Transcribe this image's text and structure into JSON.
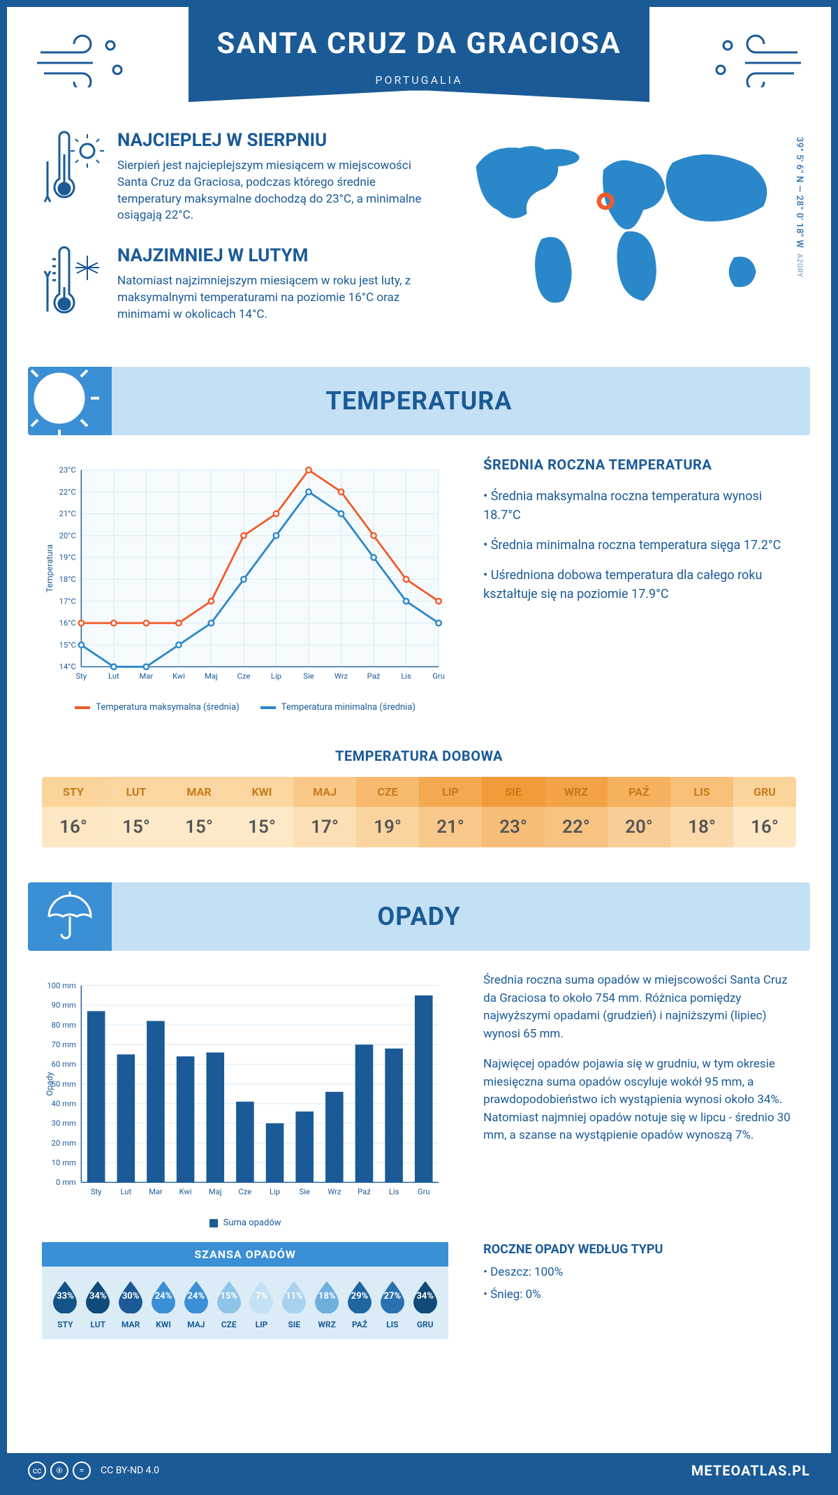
{
  "header": {
    "title": "SANTA CRUZ DA GRACIOSA",
    "subtitle": "PORTUGALIA"
  },
  "coords": {
    "main": "39° 5' 6'' N — 28° 0' 18'' W",
    "sub": "AZORY"
  },
  "intro": {
    "hot": {
      "heading": "NAJCIEPLEJ W SIERPNIU",
      "text": "Sierpień jest najcieplejszym miesiącem w miejscowości Santa Cruz da Graciosa, podczas którego średnie temperatury maksymalne dochodzą do 23°C, a minimalne osiągają 22°C."
    },
    "cold": {
      "heading": "NAJZIMNIEJ W LUTYM",
      "text": "Natomiast najzimniejszym miesiącem w roku jest luty, z maksymalnymi temperaturami na poziomie 16°C oraz minimami w okolicach 14°C."
    }
  },
  "tempSection": {
    "bannerLabel": "TEMPERATURA",
    "chart": {
      "type": "line",
      "months": [
        "Sty",
        "Lut",
        "Mar",
        "Kwi",
        "Maj",
        "Cze",
        "Lip",
        "Sie",
        "Wrz",
        "Paź",
        "Lis",
        "Gru"
      ],
      "max": [
        16,
        16,
        16,
        16,
        17,
        20,
        21,
        23,
        22,
        20,
        18,
        17
      ],
      "min": [
        15,
        14,
        14,
        15,
        16,
        18,
        20,
        22,
        21,
        19,
        17,
        16
      ],
      "colors": {
        "max": "#f15a29",
        "min": "#2a87c9",
        "grid": "#d8e8f4",
        "axis": "#1a5a96",
        "bg": "#f5fafd"
      },
      "ylim": [
        14,
        23
      ],
      "ytick": 1,
      "yTitle": "Temperatura",
      "legend": {
        "max": "Temperatura maksymalna (średnia)",
        "min": "Temperatura minimalna (średnia)"
      }
    },
    "info": {
      "heading": "ŚREDNIA ROCZNA TEMPERATURA",
      "bullets": [
        "Średnia maksymalna roczna temperatura wynosi 18.7°C",
        "Średnia minimalna roczna temperatura sięga 17.2°C",
        "Uśredniona dobowa temperatura dla całego roku kształtuje się na poziomie 17.9°C"
      ]
    },
    "dailyHeading": "TEMPERATURA DOBOWA",
    "daily": {
      "months": [
        "STY",
        "LUT",
        "MAR",
        "KWI",
        "MAJ",
        "CZE",
        "LIP",
        "SIE",
        "WRZ",
        "PAŹ",
        "LIS",
        "GRU"
      ],
      "values": [
        "16°",
        "15°",
        "15°",
        "15°",
        "17°",
        "19°",
        "21°",
        "23°",
        "22°",
        "20°",
        "18°",
        "16°"
      ],
      "headBg": [
        "#fbd49b",
        "#fcd6a0",
        "#fcd6a0",
        "#fcd6a0",
        "#fac98a",
        "#f7b96d",
        "#f4a951",
        "#f19a3a",
        "#f3a246",
        "#f5b15d",
        "#f8c079",
        "#fbd49b"
      ],
      "valBg": [
        "#fde7c4",
        "#fde9c8",
        "#fde9c8",
        "#fde9c8",
        "#fcdfb4",
        "#fad49f",
        "#f8c88b",
        "#f6bd78",
        "#f7c381",
        "#f9ce96",
        "#fbd8aa",
        "#fde7c4"
      ]
    }
  },
  "precipSection": {
    "bannerLabel": "OPADY",
    "chart": {
      "type": "bar",
      "months": [
        "Sty",
        "Lut",
        "Mar",
        "Kwi",
        "Maj",
        "Cze",
        "Lip",
        "Sie",
        "Wrz",
        "Paź",
        "Lis",
        "Gru"
      ],
      "values": [
        87,
        65,
        82,
        64,
        66,
        41,
        30,
        36,
        46,
        70,
        68,
        95
      ],
      "barColor": "#1a5a96",
      "grid": "#d8e8f4",
      "ylim": [
        0,
        100
      ],
      "ytick": 10,
      "yTitle": "Opady",
      "legend": "Suma opadów"
    },
    "paragraphs": [
      "Średnia roczna suma opadów w miejscowości Santa Cruz da Graciosa to około 754 mm. Różnica pomiędzy najwyższymi opadami (grudzień) i najniższymi (lipiec) wynosi 65 mm.",
      "Najwięcej opadów pojawia się w grudniu, w tym okresie miesięczna suma opadów oscyluje wokół 95 mm, a prawdopodobieństwo ich wystąpienia wynosi około 34%. Natomiast najmniej opadów notuje się w lipcu - średnio 30 mm, a szanse na wystąpienie opadów wynoszą 7%."
    ],
    "chance": {
      "heading": "SZANSA OPADÓW",
      "months": [
        "STY",
        "LUT",
        "MAR",
        "KWI",
        "MAJ",
        "CZE",
        "LIP",
        "SIE",
        "WRZ",
        "PAŹ",
        "LIS",
        "GRU"
      ],
      "pct": [
        "33%",
        "34%",
        "30%",
        "24%",
        "24%",
        "15%",
        "7%",
        "11%",
        "18%",
        "29%",
        "27%",
        "34%"
      ],
      "fills": [
        "#135385",
        "#0f4a78",
        "#1a5a96",
        "#3b8fd4",
        "#3b8fd4",
        "#8fc3e8",
        "#c4e0f4",
        "#a9d2ee",
        "#6eafde",
        "#2066a0",
        "#2a72af",
        "#0f4a78"
      ]
    },
    "type": {
      "heading": "ROCZNE OPADY WEDŁUG TYPU",
      "items": [
        "Deszcz: 100%",
        "Śnieg: 0%"
      ]
    }
  },
  "footer": {
    "license": "CC BY-ND 4.0",
    "brand": "METEOATLAS.PL"
  }
}
